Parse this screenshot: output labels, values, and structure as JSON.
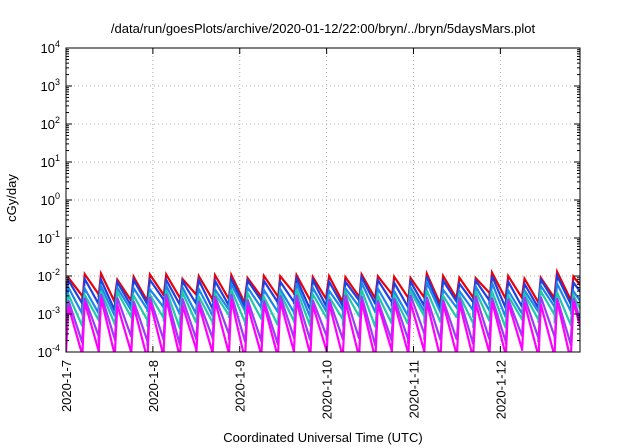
{
  "chart_data": {
    "type": "line",
    "title": "/data/run/goesPlots/archive/2020-01-12/22:00/bryn/../bryn/5daysMars.plot",
    "xlabel": "Coordinated Universal Time (UTC)",
    "ylabel": "cGy/day",
    "y_scale": "log",
    "ylim": [
      0.0001,
      10000
    ],
    "y_ticks": [
      {
        "base": "10",
        "exp": "-4",
        "value": 0.0001
      },
      {
        "base": "10",
        "exp": "-3",
        "value": 0.001
      },
      {
        "base": "10",
        "exp": "-2",
        "value": 0.01
      },
      {
        "base": "10",
        "exp": "-1",
        "value": 0.1
      },
      {
        "base": "10",
        "exp": "0",
        "value": 1
      },
      {
        "base": "10",
        "exp": "1",
        "value": 10
      },
      {
        "base": "10",
        "exp": "2",
        "value": 100
      },
      {
        "base": "10",
        "exp": "3",
        "value": 1000
      },
      {
        "base": "10",
        "exp": "4",
        "value": 10000
      }
    ],
    "xlim": [
      "2020-01-07",
      "2020-01-12 22:00"
    ],
    "x_ticks": [
      "2020-1-7",
      "2020-1-8",
      "2020-1-9",
      "2020-1-10",
      "2020-1-11",
      "2020-1-12"
    ],
    "grid": true,
    "legend": false,
    "series": [
      {
        "color": "#e8000b",
        "peaks": [
          0.009,
          0.01,
          0.012,
          0.009
        ],
        "troughs": [
          0.0025,
          0.003,
          0.0022,
          0.0028
        ]
      },
      {
        "color": "#1f3fe0",
        "peaks": [
          0.007,
          0.008,
          0.009,
          0.007
        ],
        "troughs": [
          0.0017,
          0.002,
          0.0015,
          0.0019
        ]
      },
      {
        "color": "#1c86ee",
        "peaks": [
          0.0045,
          0.005,
          0.006,
          0.0045
        ],
        "troughs": [
          0.0011,
          0.0013,
          0.001,
          0.0012
        ]
      },
      {
        "color": "#20c9a8",
        "peaks": [
          0.0032,
          0.0036,
          0.004,
          0.0034
        ],
        "troughs": [
          0.0006,
          0.0008,
          0.0005,
          0.0007
        ]
      },
      {
        "color": "#9a3df5",
        "peaks": [
          0.0025,
          0.0028,
          0.003,
          0.0026
        ],
        "troughs": [
          0.0002,
          0.00025,
          0.00018,
          0.00022
        ]
      },
      {
        "color": "#ff00ff",
        "peaks": [
          0.0018,
          0.002,
          0.0024,
          0.0019
        ],
        "troughs": [
          8e-05,
          9e-05,
          7e-05,
          0.0001
        ]
      }
    ],
    "cycle_hours": 4.5
  }
}
